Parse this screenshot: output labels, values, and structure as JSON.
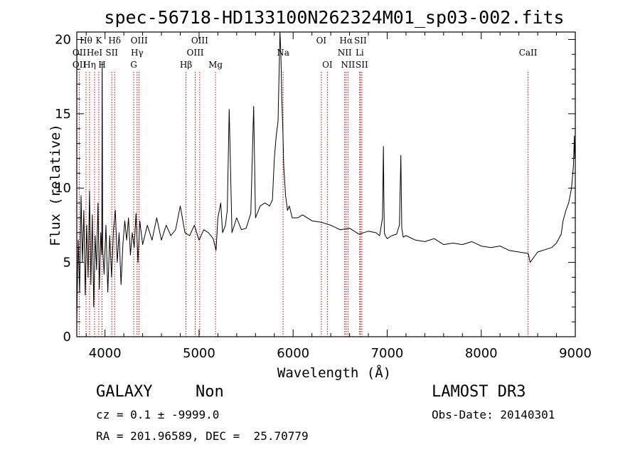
{
  "chart_data": {
    "type": "line",
    "title": "spec-56718-HD133100N262324M01_sp03-002.fits",
    "xlabel": "Wavelength (Å)",
    "ylabel": "Flux (relative)",
    "xlim": [
      3700,
      9000
    ],
    "ylim": [
      0,
      20.5
    ],
    "xticks": [
      4000,
      5000,
      6000,
      7000,
      8000,
      9000
    ],
    "yticks": [
      0,
      5,
      10,
      15,
      20
    ],
    "series": [
      {
        "name": "spectrum",
        "x": [
          3700,
          3715,
          3730,
          3745,
          3760,
          3775,
          3790,
          3805,
          3820,
          3835,
          3850,
          3865,
          3880,
          3895,
          3910,
          3925,
          3940,
          3955,
          3965,
          3970,
          3975,
          3990,
          4010,
          4030,
          4050,
          4070,
          4090,
          4110,
          4130,
          4150,
          4170,
          4190,
          4210,
          4230,
          4250,
          4270,
          4290,
          4310,
          4330,
          4350,
          4370,
          4400,
          4450,
          4500,
          4550,
          4600,
          4650,
          4700,
          4750,
          4800,
          4850,
          4900,
          4950,
          5000,
          5050,
          5100,
          5150,
          5180,
          5200,
          5230,
          5250,
          5280,
          5300,
          5320,
          5350,
          5400,
          5450,
          5500,
          5550,
          5580,
          5600,
          5650,
          5700,
          5750,
          5780,
          5800,
          5820,
          5840,
          5860,
          5870,
          5880,
          5890,
          5900,
          5910,
          5920,
          5940,
          5960,
          5990,
          6050,
          6100,
          6200,
          6300,
          6400,
          6500,
          6600,
          6700,
          6800,
          6880,
          6920,
          6950,
          6960,
          6965,
          6970,
          6980,
          7000,
          7050,
          7100,
          7130,
          7145,
          7155,
          7170,
          7200,
          7300,
          7400,
          7500,
          7600,
          7700,
          7800,
          7900,
          8000,
          8100,
          8200,
          8300,
          8400,
          8500,
          8520,
          8600,
          8700,
          8750,
          8800,
          8850,
          8870,
          8900,
          8930,
          8960,
          8980,
          8990,
          8995
        ],
        "values": [
          1.2,
          6.5,
          3.0,
          9.5,
          5.0,
          8.5,
          2.8,
          7.5,
          4.0,
          9.8,
          3.5,
          8.2,
          2.0,
          6.8,
          4.5,
          9.0,
          3.2,
          7.0,
          5.5,
          18.5,
          6.0,
          4.2,
          7.5,
          3.0,
          6.8,
          4.0,
          7.2,
          8.5,
          5.0,
          7.0,
          3.5,
          6.2,
          7.8,
          6.5,
          8.0,
          5.5,
          7.0,
          6.0,
          8.3,
          5.0,
          7.8,
          6.2,
          7.5,
          6.5,
          8.0,
          6.5,
          7.5,
          6.8,
          7.2,
          8.8,
          7.0,
          6.8,
          7.5,
          6.5,
          7.2,
          7.0,
          6.6,
          5.8,
          8.0,
          9.0,
          7.0,
          7.5,
          8.5,
          15.3,
          7.0,
          8.0,
          7.2,
          7.3,
          8.3,
          15.5,
          8.0,
          8.8,
          9.0,
          8.8,
          9.2,
          12.0,
          13.5,
          14.5,
          20.5,
          19.0,
          16.0,
          14.0,
          11.5,
          10.5,
          9.5,
          8.5,
          8.8,
          8.0,
          8.0,
          8.2,
          7.8,
          7.7,
          7.5,
          7.2,
          7.3,
          6.9,
          7.1,
          7.0,
          6.8,
          8.0,
          12.8,
          9.5,
          7.0,
          6.8,
          6.6,
          6.8,
          6.9,
          7.5,
          12.2,
          7.3,
          6.7,
          6.8,
          6.5,
          6.4,
          6.6,
          6.2,
          6.3,
          6.2,
          6.4,
          6.1,
          6.0,
          6.1,
          5.8,
          5.7,
          5.6,
          5.0,
          5.7,
          5.9,
          6.0,
          6.3,
          6.9,
          7.8,
          8.5,
          9.0,
          10.0,
          11.5,
          13.5,
          12.0
        ]
      }
    ],
    "spectral_lines": [
      {
        "name": "OII",
        "x": 3727,
        "row": 1
      },
      {
        "name": "OII",
        "x": 3727,
        "row": 2
      },
      {
        "name": "Hθ",
        "x": 3798,
        "row": 0
      },
      {
        "name": "Hη",
        "x": 3836,
        "row": 2
      },
      {
        "name": "HeI",
        "x": 3889,
        "row": 1
      },
      {
        "name": "K",
        "x": 3934,
        "row": 0
      },
      {
        "name": "H",
        "x": 3968,
        "row": 2
      },
      {
        "name": "Hδ",
        "x": 4102,
        "row": 0
      },
      {
        "name": "SII",
        "x": 4072,
        "row": 1
      },
      {
        "name": "OIII",
        "x": 4363,
        "row": 0
      },
      {
        "name": "Hγ",
        "x": 4341,
        "row": 1
      },
      {
        "name": "G",
        "x": 4305,
        "row": 2
      },
      {
        "name": "OIII",
        "x": 5007,
        "row": 0
      },
      {
        "name": "OIII",
        "x": 4959,
        "row": 1
      },
      {
        "name": "Hβ",
        "x": 4861,
        "row": 2
      },
      {
        "name": "Mg",
        "x": 5175,
        "row": 2
      },
      {
        "name": "Na",
        "x": 5893,
        "row": 1
      },
      {
        "name": "OI",
        "x": 6300,
        "row": 0
      },
      {
        "name": "OI",
        "x": 6364,
        "row": 2
      },
      {
        "name": "Hα",
        "x": 6563,
        "row": 0
      },
      {
        "name": "NII",
        "x": 6548,
        "row": 1
      },
      {
        "name": "NII",
        "x": 6583,
        "row": 2
      },
      {
        "name": "SII",
        "x": 6716,
        "row": 0
      },
      {
        "name": "Li",
        "x": 6708,
        "row": 1
      },
      {
        "name": "SII",
        "x": 6731,
        "row": 2
      },
      {
        "name": "CaII",
        "x": 8498,
        "row": 1
      }
    ]
  },
  "footer": {
    "object_class": "GALAXY",
    "subclass": "Non",
    "redshift": "cz = 0.1 ± -9999.0",
    "coords": "RA = 201.96589, DEC =  25.70779",
    "survey": "LAMOST DR3",
    "obs_date": "Obs-Date: 20140301"
  }
}
